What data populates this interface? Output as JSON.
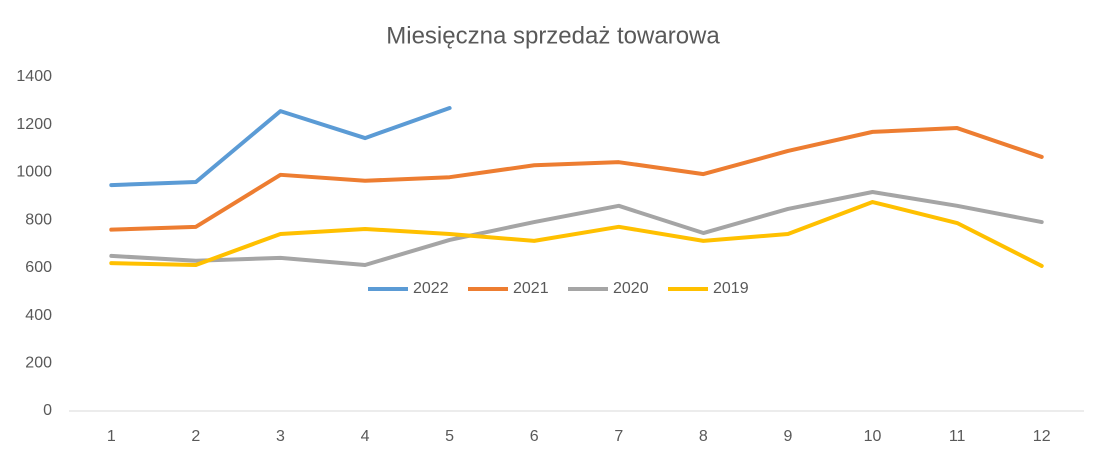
{
  "chart_data": {
    "type": "line",
    "title": "Miesięczna sprzedaż towarowa",
    "categories": [
      "1",
      "2",
      "3",
      "4",
      "5",
      "6",
      "7",
      "8",
      "9",
      "10",
      "11",
      "12"
    ],
    "series": [
      {
        "name": "2022",
        "color": "#5b9bd5",
        "values": [
          947,
          960,
          1257,
          1144,
          1270,
          null,
          null,
          null,
          null,
          null,
          null,
          null
        ]
      },
      {
        "name": "2021",
        "color": "#ed7d31",
        "values": [
          760,
          772,
          990,
          965,
          980,
          1030,
          1043,
          993,
          1090,
          1170,
          1186,
          1065
        ]
      },
      {
        "name": "2020",
        "color": "#a5a5a5",
        "values": [
          650,
          630,
          642,
          612,
          717,
          792,
          860,
          746,
          847,
          918,
          860,
          792
        ]
      },
      {
        "name": "2019",
        "color": "#ffc000",
        "values": [
          620,
          612,
          742,
          763,
          742,
          713,
          772,
          713,
          742,
          876,
          788,
          608
        ]
      }
    ],
    "ylim": [
      0,
      1400
    ],
    "yticks": [
      0,
      200,
      400,
      600,
      800,
      1000,
      1200,
      1400
    ],
    "grid": false,
    "legend": "center"
  }
}
